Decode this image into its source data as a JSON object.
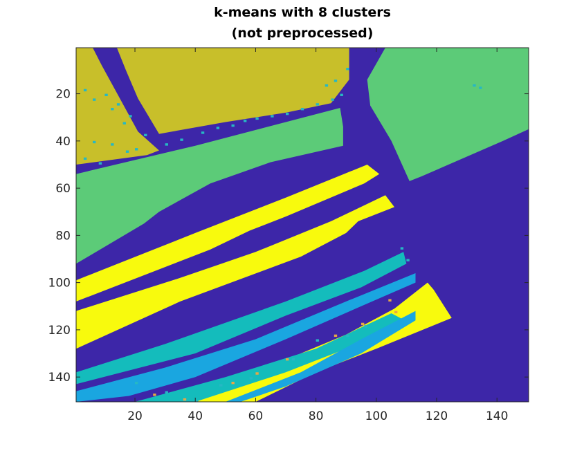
{
  "chart_data": {
    "type": "heatmap",
    "title": [
      "k-means with 8 clusters",
      "(not preprocessed)"
    ],
    "xlabel": "",
    "ylabel": "",
    "xlim": [
      0.5,
      150.5
    ],
    "ylim": [
      0.5,
      150.5
    ],
    "y_direction": "reverse (row 1 at top)",
    "x_ticks": [
      20,
      40,
      60,
      80,
      100,
      120,
      140
    ],
    "y_ticks": [
      20,
      40,
      60,
      80,
      100,
      120,
      140
    ],
    "grid": false,
    "colormap": "parula",
    "cluster_colors": {
      "road": "#3d26a8",
      "olive_field": "#c8bf2a",
      "green_field": "#5ccb78",
      "yellow_strips": "#f8fa0d",
      "teal_strips": "#14bcbc",
      "light_blue_strips": "#1aa6e0",
      "scattered_cyan": "#26b8c4",
      "scattered_orange": "#e6a845"
    },
    "regions": [
      {
        "cluster": "road",
        "description": "background / road class covering most of the image outside the fields"
      },
      {
        "cluster": "olive_field",
        "x_range": [
          1,
          90
        ],
        "y_range": [
          1,
          50
        ]
      },
      {
        "cluster": "green_field",
        "x_range": [
          97,
          150
        ],
        "y_range": [
          1,
          45
        ]
      },
      {
        "cluster": "green_field",
        "x_range": [
          1,
          89
        ],
        "y_range": [
          33,
          92
        ]
      },
      {
        "cluster": "yellow_strips",
        "x_range": [
          1,
          125
        ],
        "y_range": [
          50,
          150
        ]
      },
      {
        "cluster": "teal_strips",
        "x_range": [
          1,
          113
        ],
        "y_range": [
          84,
          150
        ]
      },
      {
        "cluster": "light_blue_strips",
        "x_range": [
          1,
          113
        ],
        "y_range": [
          92,
          150
        ]
      }
    ]
  }
}
